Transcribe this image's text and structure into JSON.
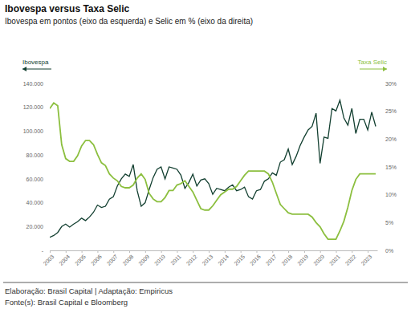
{
  "chart_data": {
    "type": "line",
    "title": "Ibovespa versus Taxa Selic",
    "subtitle": "Ibovespa em pontos (eixo da esquerda) e Selic em % (eixo da direita)",
    "footnotes": [
      "Elaboração: Brasil Capital | Adaptação: Empiricus",
      "Fonte(s): Brasil Capital e Bloomberg"
    ],
    "legend": "top",
    "grid": false,
    "x": [
      2003,
      2003.25,
      2003.5,
      2003.75,
      2004,
      2004.25,
      2004.5,
      2004.75,
      2005,
      2005.25,
      2005.5,
      2005.75,
      2006,
      2006.25,
      2006.5,
      2006.75,
      2007,
      2007.25,
      2007.5,
      2007.75,
      2008,
      2008.25,
      2008.5,
      2008.75,
      2009,
      2009.25,
      2009.5,
      2009.75,
      2010,
      2010.25,
      2010.5,
      2010.75,
      2011,
      2011.25,
      2011.5,
      2011.75,
      2012,
      2012.25,
      2012.5,
      2012.75,
      2013,
      2013.25,
      2013.5,
      2013.75,
      2014,
      2014.25,
      2014.5,
      2014.75,
      2015,
      2015.25,
      2015.5,
      2015.75,
      2016,
      2016.25,
      2016.5,
      2016.75,
      2017,
      2017.25,
      2017.5,
      2017.75,
      2018,
      2018.25,
      2018.5,
      2018.75,
      2019,
      2019.25,
      2019.5,
      2019.75,
      2020,
      2020.25,
      2020.5,
      2020.75,
      2021,
      2021.25,
      2021.5,
      2021.75,
      2022,
      2022.25,
      2022.5,
      2022.75,
      2023,
      2023.25,
      2023.5
    ],
    "xlim": [
      2003,
      2023.6
    ],
    "xticks": [
      2003,
      2004,
      2005,
      2006,
      2007,
      2008,
      2009,
      2010,
      2011,
      2012,
      2013,
      2014,
      2015,
      2016,
      2017,
      2018,
      2019,
      2020,
      2021,
      2022,
      2023
    ],
    "ylim": [
      0,
      140000
    ],
    "yticks": [
      {
        "value": 0,
        "label": "-"
      },
      {
        "value": 20000,
        "label": "20.000"
      },
      {
        "value": 40000,
        "label": "40.000"
      },
      {
        "value": 60000,
        "label": "60.000"
      },
      {
        "value": 80000,
        "label": "80.000"
      },
      {
        "value": 100000,
        "label": "100.000"
      },
      {
        "value": 120000,
        "label": "120.000"
      },
      {
        "value": 140000,
        "label": "140.000"
      }
    ],
    "y2lim": [
      0,
      30
    ],
    "y2ticks": [
      {
        "value": 0,
        "label": "0%"
      },
      {
        "value": 5,
        "label": "5%"
      },
      {
        "value": 10,
        "label": "10%"
      },
      {
        "value": 15,
        "label": "15%"
      },
      {
        "value": 20,
        "label": "20%"
      },
      {
        "value": 25,
        "label": "25%"
      },
      {
        "value": 30,
        "label": "30%"
      }
    ],
    "series": [
      {
        "name": "Ibovespa",
        "color": "#123f30",
        "axis": "y",
        "values": [
          11000,
          12500,
          15000,
          20000,
          22000,
          19500,
          22000,
          24000,
          27000,
          25000,
          28000,
          32000,
          38000,
          36000,
          37000,
          43000,
          45000,
          54000,
          60000,
          64000,
          62000,
          72000,
          50000,
          37000,
          40000,
          51000,
          61000,
          68000,
          70000,
          60000,
          70000,
          69000,
          68000,
          63000,
          52000,
          57000,
          64000,
          54000,
          59000,
          60000,
          56000,
          47000,
          52000,
          51000,
          50000,
          53000,
          55000,
          50000,
          51000,
          53000,
          45000,
          43000,
          50000,
          51000,
          58000,
          60000,
          65000,
          63000,
          74000,
          76000,
          85000,
          72000,
          79000,
          88000,
          95000,
          101000,
          104000,
          115000,
          73000,
          95000,
          94000,
          119000,
          117000,
          126000,
          111000,
          105000,
          119000,
          98000,
          110000,
          110000,
          101000,
          116000,
          104000
        ]
      },
      {
        "name": "Taxa Selic",
        "color": "#8cbf3f",
        "axis": "y2",
        "values": [
          25.5,
          26.5,
          26,
          19,
          16.5,
          16,
          16,
          17,
          18.75,
          19.75,
          19.75,
          19,
          17.25,
          15.75,
          15.25,
          13.75,
          13,
          12.5,
          11.5,
          11.25,
          11.25,
          11.75,
          13,
          13.75,
          12.75,
          10.25,
          9.25,
          8.75,
          8.75,
          9.5,
          10.75,
          10.75,
          11.75,
          12,
          12.5,
          11.5,
          10.5,
          9,
          7.5,
          7.25,
          7.25,
          8,
          9,
          10,
          10.5,
          11,
          11,
          11.5,
          12.5,
          13.5,
          14.25,
          14.25,
          14.25,
          14.25,
          14.25,
          13.75,
          12.25,
          10.25,
          8.25,
          7.5,
          6.75,
          6.5,
          6.5,
          6.5,
          6.5,
          6.5,
          6,
          5,
          4.25,
          3,
          2,
          2,
          2,
          3.5,
          5.25,
          7.75,
          10.75,
          12.75,
          13.75,
          13.75,
          13.75,
          13.75,
          13.75
        ]
      }
    ]
  }
}
